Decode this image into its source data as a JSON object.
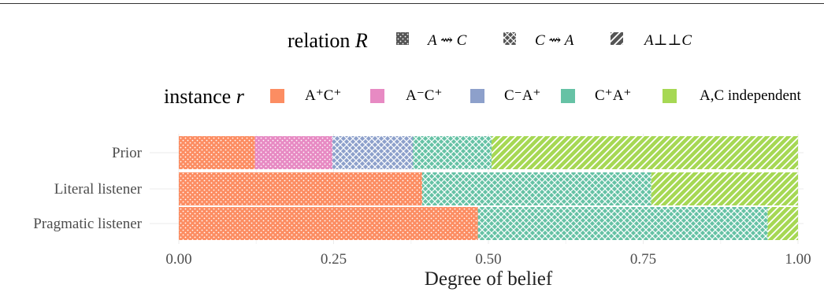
{
  "legend_relation": {
    "title_text": "relation",
    "title_symbol": "R",
    "items": [
      {
        "label": "A ⇝ C",
        "pattern": "dots"
      },
      {
        "label": "C ⇝ A",
        "pattern": "crosshatch"
      },
      {
        "label": "A⊥⊥C",
        "pattern": "stripes"
      }
    ]
  },
  "legend_instance": {
    "title_text": "instance",
    "title_symbol": "r",
    "items": [
      {
        "label": "A⁺C⁺",
        "color": "#fc8d62"
      },
      {
        "label": "A⁻C⁺",
        "color": "#e78ac3"
      },
      {
        "label": "C⁻A⁺",
        "color": "#8da0cb"
      },
      {
        "label": "C⁺A⁺",
        "color": "#66c2a5"
      },
      {
        "label": "A,C independent",
        "color": "#a6d854"
      }
    ]
  },
  "chart_data": {
    "type": "bar",
    "orientation": "horizontal",
    "stacked": true,
    "xlabel": "Degree of belief",
    "xlim": [
      0,
      1
    ],
    "xticks": [
      "0.00",
      "0.25",
      "0.50",
      "0.75",
      "1.00"
    ],
    "categories": [
      "Prior",
      "Literal listener",
      "Pragmatic listener"
    ],
    "bars": [
      {
        "category": "Prior",
        "segments": [
          {
            "instance": "A⁺C⁺",
            "relation": "A ⇝ C",
            "value": 0.123
          },
          {
            "instance": "A⁻C⁺",
            "relation": "A ⇝ C",
            "value": 0.125
          },
          {
            "instance": "C⁻A⁺",
            "relation": "C ⇝ A",
            "value": 0.13
          },
          {
            "instance": "C⁺A⁺",
            "relation": "C ⇝ A",
            "value": 0.127
          },
          {
            "instance": "A,C independent",
            "relation": "A⊥⊥C",
            "value": 0.495
          }
        ]
      },
      {
        "category": "Literal listener",
        "segments": [
          {
            "instance": "A⁺C⁺",
            "relation": "A ⇝ C",
            "value": 0.393
          },
          {
            "instance": "C⁺A⁺",
            "relation": "C ⇝ A",
            "value": 0.37
          },
          {
            "instance": "A,C independent",
            "relation": "A⊥⊥C",
            "value": 0.237
          }
        ]
      },
      {
        "category": "Pragmatic listener",
        "segments": [
          {
            "instance": "A⁺C⁺",
            "relation": "A ⇝ C",
            "value": 0.483
          },
          {
            "instance": "C⁺A⁺",
            "relation": "C ⇝ A",
            "value": 0.468
          },
          {
            "instance": "A,C independent",
            "relation": "A⊥⊥C",
            "value": 0.049
          }
        ]
      }
    ],
    "grid": true,
    "legend_position": "top"
  }
}
